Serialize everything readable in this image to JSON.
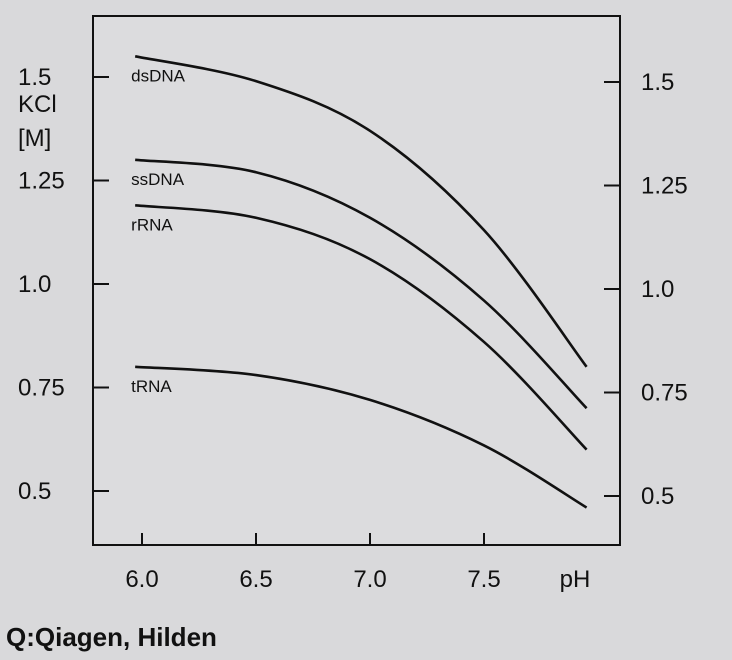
{
  "chart_data": {
    "type": "line",
    "xlabel": "pH",
    "ylabel": [
      "KCl",
      "[M]"
    ],
    "xlim": [
      5.8,
      8.05
    ],
    "ylim": [
      0.37,
      1.65
    ],
    "x_ticks": [
      "6.0",
      "6.5",
      "7.0",
      "7.5"
    ],
    "x_tick_values": [
      6.0,
      6.5,
      7.0,
      7.5
    ],
    "y_ticks": [
      "0.5",
      "0.75",
      "1.0",
      "1.25",
      "1.5"
    ],
    "y_tick_values": [
      0.5,
      0.75,
      1.0,
      1.25,
      1.5
    ],
    "grid": false,
    "series": [
      {
        "name": "dsDNA",
        "x": [
          5.97,
          6.5,
          7.0,
          7.5,
          7.95
        ],
        "values": [
          1.55,
          1.49,
          1.37,
          1.13,
          0.8
        ]
      },
      {
        "name": "ssDNA",
        "x": [
          5.97,
          6.5,
          7.0,
          7.5,
          7.95
        ],
        "values": [
          1.3,
          1.27,
          1.16,
          0.96,
          0.7
        ]
      },
      {
        "name": "rRNA",
        "x": [
          5.97,
          6.5,
          7.0,
          7.5,
          7.95
        ],
        "values": [
          1.19,
          1.16,
          1.06,
          0.86,
          0.6
        ]
      },
      {
        "name": "tRNA",
        "x": [
          5.97,
          6.5,
          7.0,
          7.5,
          7.95
        ],
        "values": [
          0.8,
          0.78,
          0.72,
          0.61,
          0.46
        ]
      }
    ]
  },
  "caption": "Q:Qiagen, Hilden"
}
